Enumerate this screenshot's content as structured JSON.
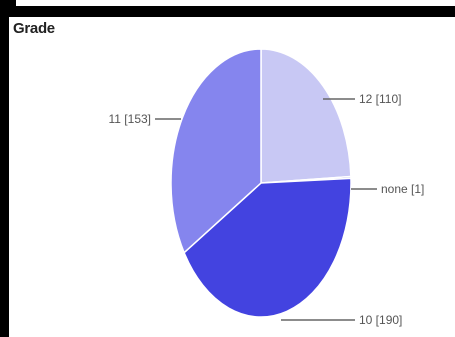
{
  "chart_data": {
    "type": "pie",
    "title": "Grade",
    "slices": [
      {
        "label": "12 [110]",
        "value": 110,
        "color": "#c8c8f4"
      },
      {
        "label": "none [1]",
        "value": 1,
        "color": "#9a9ae8"
      },
      {
        "label": "10 [190]",
        "value": 190,
        "color": "#4343e0"
      },
      {
        "label": "11 [153]",
        "value": 153,
        "color": "#8585ee"
      }
    ],
    "legend": "none"
  }
}
